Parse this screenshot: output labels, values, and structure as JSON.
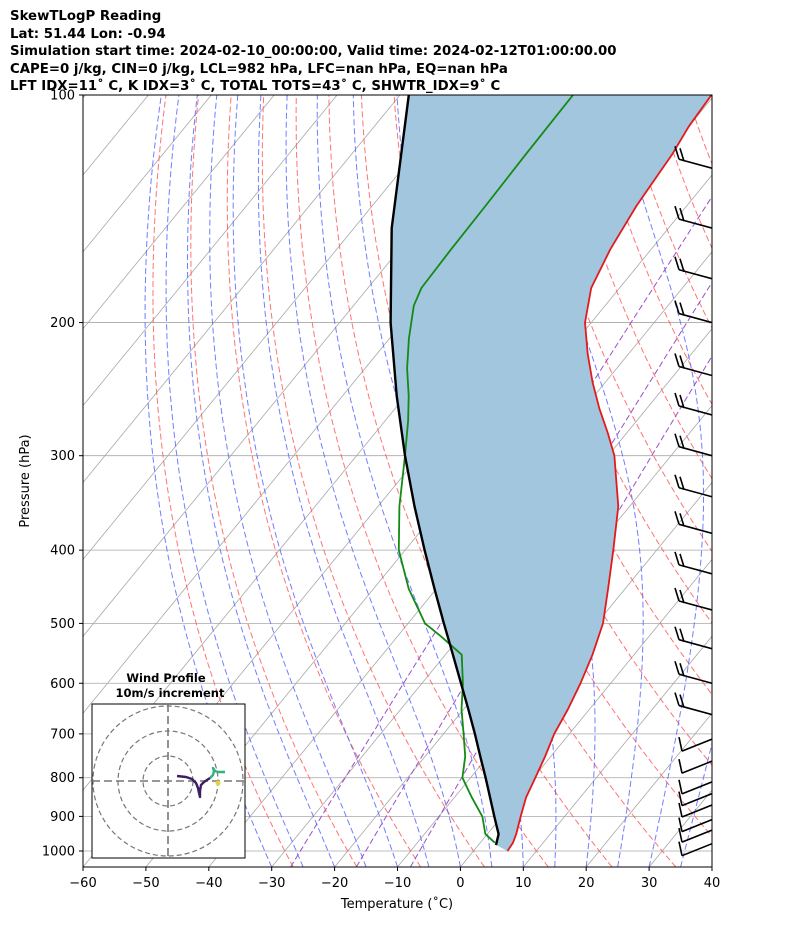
{
  "header": {
    "title": "SkewTLogP Reading",
    "location": "Lat: 51.44   Lon: -0.94",
    "times": "Simulation start time: 2024-02-10_00:00:00, Valid time: 2024-02-12T01:00:00.00",
    "indices1": "CAPE=0 j/kg, CIN=0 j/kg, LCL=982 hPa, LFC=nan hPa, EQ=nan hPa",
    "indices2": "LFT IDX=11˚ C, K IDX=3˚ C, TOTAL TOTS=43˚ C, SHWTR_IDX=9˚ C"
  },
  "chart_data": {
    "type": "line",
    "subtype": "skewT-logP",
    "xlabel": "Temperature (˚C)",
    "ylabel": "Pressure (hPa)",
    "xlim": [
      -60,
      40
    ],
    "ylim": [
      1050,
      100
    ],
    "x_ticks": [
      "−60",
      "−50",
      "−40",
      "−30",
      "−20",
      "−10",
      "0",
      "10",
      "20",
      "30",
      "40"
    ],
    "y_ticks": [
      "100",
      "200",
      "300",
      "400",
      "500",
      "600",
      "700",
      "800",
      "900",
      "1000"
    ],
    "grid": true,
    "y_scale": "log",
    "colors": {
      "temperature": "#e31a1c",
      "dewpoint": "#138a13",
      "parcel": "#000000",
      "shade": "#a3c6df",
      "dry_adiabat": "#ff5a5a",
      "moist_adiabat": "#5a66ff",
      "mixing_ratio": "#9b4fc9",
      "isotherm": "#a8a8a8"
    },
    "series": [
      {
        "key": "temperature",
        "points": [
          [
            1000,
            5.4
          ],
          [
            975,
            5.2
          ],
          [
            950,
            4.6
          ],
          [
            900,
            3.0
          ],
          [
            850,
            1.4
          ],
          [
            800,
            0.3
          ],
          [
            750,
            -0.9
          ],
          [
            700,
            -2.4
          ],
          [
            650,
            -3.4
          ],
          [
            600,
            -4.8
          ],
          [
            550,
            -6.6
          ],
          [
            500,
            -9.0
          ],
          [
            450,
            -12.7
          ],
          [
            400,
            -16.9
          ],
          [
            350,
            -21.8
          ],
          [
            320,
            -26.0
          ],
          [
            300,
            -29.0
          ],
          [
            280,
            -33.0
          ],
          [
            260,
            -37.5
          ],
          [
            240,
            -42.0
          ],
          [
            220,
            -46.5
          ],
          [
            200,
            -51.0
          ],
          [
            180,
            -54.5
          ],
          [
            160,
            -56.5
          ],
          [
            140,
            -58.0
          ],
          [
            120,
            -59.0
          ],
          [
            110,
            -60.0
          ],
          [
            100,
            -60.5
          ]
        ]
      },
      {
        "key": "dewpoint",
        "points": [
          [
            975,
            2.3
          ],
          [
            950,
            -0.3
          ],
          [
            900,
            -3.1
          ],
          [
            850,
            -7.2
          ],
          [
            800,
            -11.3
          ],
          [
            750,
            -13.6
          ],
          [
            700,
            -16.8
          ],
          [
            650,
            -20.3
          ],
          [
            600,
            -23.5
          ],
          [
            550,
            -27.4
          ],
          [
            520,
            -33.1
          ],
          [
            500,
            -37.3
          ],
          [
            450,
            -44.4
          ],
          [
            400,
            -51.0
          ],
          [
            350,
            -56.6
          ],
          [
            300,
            -62.3
          ],
          [
            270,
            -66.3
          ],
          [
            250,
            -69.5
          ],
          [
            230,
            -73.3
          ],
          [
            210,
            -76.9
          ],
          [
            190,
            -80.4
          ],
          [
            180,
            -81.5
          ],
          [
            160,
            -81.8
          ],
          [
            140,
            -82.0
          ],
          [
            120,
            -82.3
          ],
          [
            100,
            -82.5
          ]
        ]
      },
      {
        "key": "parcel",
        "points": [
          [
            982,
            2.8
          ],
          [
            950,
            1.8
          ],
          [
            900,
            -1.2
          ],
          [
            850,
            -4.3
          ],
          [
            800,
            -7.6
          ],
          [
            750,
            -11.2
          ],
          [
            700,
            -15.0
          ],
          [
            650,
            -19.2
          ],
          [
            600,
            -23.8
          ],
          [
            550,
            -28.8
          ],
          [
            500,
            -34.3
          ],
          [
            450,
            -40.3
          ],
          [
            400,
            -46.9
          ],
          [
            350,
            -54.2
          ],
          [
            300,
            -62.3
          ],
          [
            250,
            -71.4
          ],
          [
            200,
            -81.9
          ],
          [
            150,
            -94.0
          ],
          [
            100,
            -108.6
          ]
        ]
      }
    ],
    "wind_barbs": {
      "levels": [
        100,
        125,
        150,
        175,
        200,
        235,
        265,
        300,
        340,
        380,
        430,
        480,
        540,
        600,
        660,
        720,
        770,
        820,
        850,
        880,
        920,
        950,
        990
      ]
    },
    "inset": {
      "title": "Wind Profile",
      "subtitle": "10m/s increment"
    }
  }
}
